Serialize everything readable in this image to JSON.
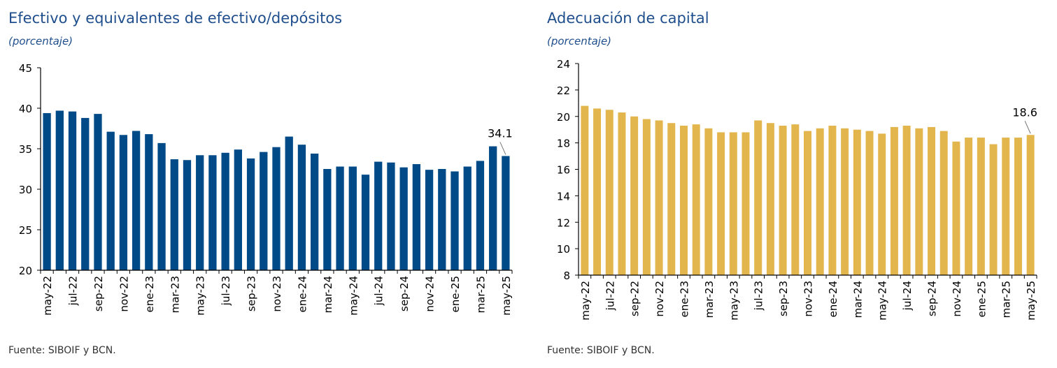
{
  "source": "Fuente: SIBOIF y BCN.",
  "chart_data": [
    {
      "type": "bar",
      "title": "Efectivo y equivalentes de efectivo/depósitos",
      "subtitle": "(porcentaje)",
      "color": "#004b87",
      "ylim": [
        20,
        45
      ],
      "yticks": [
        20,
        25,
        30,
        35,
        40,
        45
      ],
      "grid": false,
      "categories": [
        "may-22",
        "jun-22",
        "jul-22",
        "ago-22",
        "sep-22",
        "oct-22",
        "nov-22",
        "dic-22",
        "ene-23",
        "feb-23",
        "mar-23",
        "abr-23",
        "may-23",
        "jun-23",
        "jul-23",
        "ago-23",
        "sep-23",
        "oct-23",
        "nov-23",
        "dic-23",
        "ene-24",
        "feb-24",
        "mar-24",
        "abr-24",
        "may-24",
        "jun-24",
        "jul-24",
        "ago-24",
        "sep-24",
        "oct-24",
        "nov-24",
        "dic-24",
        "ene-25",
        "feb-25",
        "mar-25",
        "abr-25",
        "may-25"
      ],
      "tick_labels": [
        "may-22",
        "jul-22",
        "sep-22",
        "nov-22",
        "ene-23",
        "mar-23",
        "may-23",
        "jul-23",
        "sep-23",
        "nov-23",
        "ene-24",
        "mar-24",
        "may-24",
        "jul-24",
        "sep-24",
        "nov-24",
        "ene-25",
        "mar-25",
        "may-25"
      ],
      "values": [
        39.4,
        39.7,
        39.6,
        38.8,
        39.3,
        37.1,
        36.7,
        37.2,
        36.8,
        35.7,
        33.7,
        33.6,
        34.2,
        34.2,
        34.5,
        34.9,
        33.8,
        34.6,
        35.2,
        36.5,
        35.5,
        34.4,
        32.5,
        32.8,
        32.8,
        31.8,
        33.4,
        33.3,
        32.7,
        33.1,
        32.4,
        32.5,
        32.2,
        32.8,
        33.5,
        35.3,
        34.1
      ],
      "annotation": {
        "label": "34.1",
        "index": 36
      }
    },
    {
      "type": "bar",
      "title": "Adecuación de capital",
      "subtitle": "(porcentaje)",
      "color": "#e3b64d",
      "ylim": [
        8,
        24
      ],
      "yticks": [
        8,
        10,
        12,
        14,
        16,
        18,
        20,
        22,
        24
      ],
      "grid": false,
      "categories": [
        "may-22",
        "jun-22",
        "jul-22",
        "ago-22",
        "sep-22",
        "oct-22",
        "nov-22",
        "dic-22",
        "ene-23",
        "feb-23",
        "mar-23",
        "abr-23",
        "may-23",
        "jun-23",
        "jul-23",
        "ago-23",
        "sep-23",
        "oct-23",
        "nov-23",
        "dic-23",
        "ene-24",
        "feb-24",
        "mar-24",
        "abr-24",
        "may-24",
        "jun-24",
        "jul-24",
        "ago-24",
        "sep-24",
        "oct-24",
        "nov-24",
        "dic-24",
        "ene-25",
        "feb-25",
        "mar-25",
        "abr-25",
        "may-25"
      ],
      "tick_labels": [
        "may-22",
        "jul-22",
        "sep-22",
        "nov-22",
        "ene-23",
        "mar-23",
        "may-23",
        "jul-23",
        "sep-23",
        "nov-23",
        "ene-24",
        "mar-24",
        "may-24",
        "jul-24",
        "sep-24",
        "nov-24",
        "ene-25",
        "mar-25",
        "may-25"
      ],
      "values": [
        20.8,
        20.6,
        20.5,
        20.3,
        20.0,
        19.8,
        19.7,
        19.5,
        19.3,
        19.4,
        19.1,
        18.8,
        18.8,
        18.8,
        19.7,
        19.5,
        19.3,
        19.4,
        18.9,
        19.1,
        19.3,
        19.1,
        19.0,
        18.9,
        18.7,
        19.2,
        19.3,
        19.1,
        19.2,
        18.9,
        18.1,
        18.4,
        18.4,
        17.9,
        18.4,
        18.4,
        18.6
      ],
      "annotation": {
        "label": "18.6",
        "index": 36
      }
    }
  ]
}
